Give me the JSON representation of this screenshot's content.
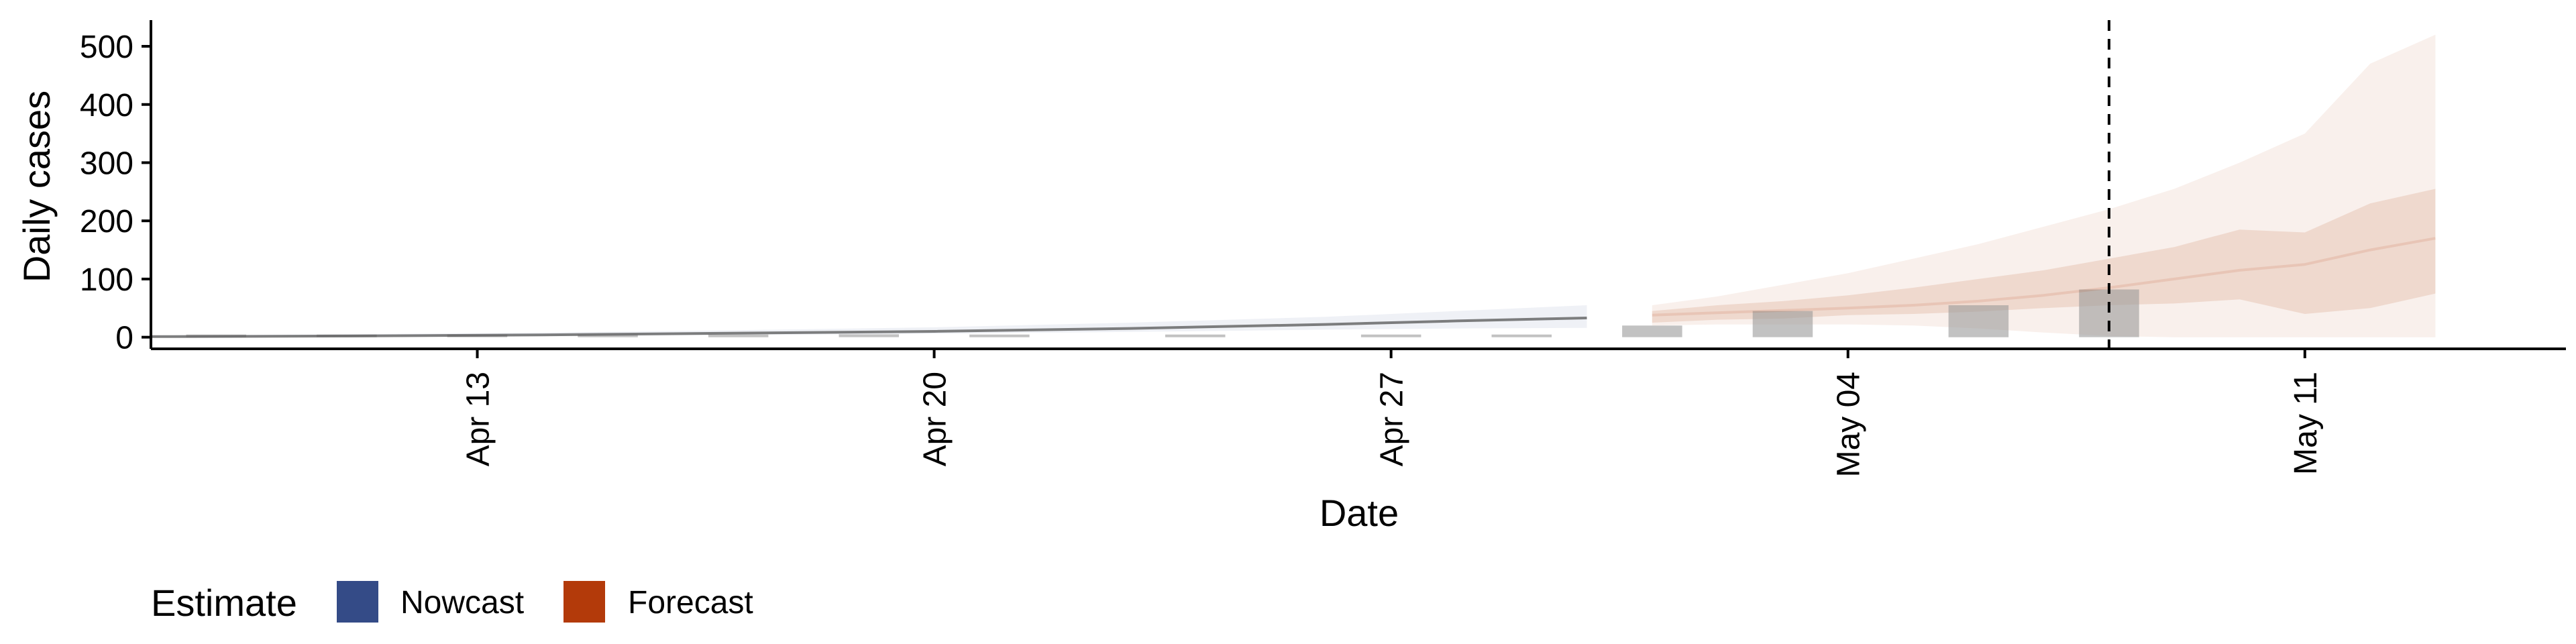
{
  "chart_data": {
    "type": "area",
    "xlabel": "Date",
    "ylabel": "Daily cases",
    "x_range": [
      "2020-04-08",
      "2020-05-15"
    ],
    "ylim": [
      -20,
      545
    ],
    "x_ticks": [
      {
        "date": "2020-04-13",
        "label": "Apr 13"
      },
      {
        "date": "2020-04-20",
        "label": "Apr 20"
      },
      {
        "date": "2020-04-27",
        "label": "Apr 27"
      },
      {
        "date": "2020-05-04",
        "label": "May 04"
      },
      {
        "date": "2020-05-11",
        "label": "May 11"
      }
    ],
    "y_ticks": [
      0,
      100,
      200,
      300,
      400,
      500
    ],
    "grid": false,
    "legend": {
      "title": "Estimate",
      "position": "bottom-left",
      "entries": [
        {
          "label": "Nowcast",
          "color": "#344b87"
        },
        {
          "label": "Forecast",
          "color": "#b33a0a"
        }
      ]
    },
    "vline": {
      "date": "2020-05-08",
      "style": "dashed"
    },
    "observed_cases": {
      "dates": [
        "2020-04-09",
        "2020-04-11",
        "2020-04-13",
        "2020-04-15",
        "2020-04-17",
        "2020-04-19",
        "2020-04-21",
        "2020-04-24",
        "2020-04-27",
        "2020-04-29",
        "2020-05-01",
        "2020-05-03",
        "2020-05-06",
        "2020-05-08"
      ],
      "values": [
        0,
        2,
        3,
        2,
        3,
        5,
        2,
        3,
        4,
        3,
        20,
        45,
        55,
        82
      ]
    },
    "series": [
      {
        "name": "Nowcast",
        "color": "#344b87",
        "dates": [
          "2020-04-08",
          "2020-04-11",
          "2020-04-14",
          "2020-04-17",
          "2020-04-20",
          "2020-04-23",
          "2020-04-26",
          "2020-04-28",
          "2020-04-30"
        ],
        "median": [
          1,
          2,
          4,
          7,
          10,
          15,
          22,
          28,
          33
        ],
        "lower90": [
          0,
          1,
          2,
          4,
          6,
          9,
          13,
          15,
          16
        ],
        "upper90": [
          3,
          5,
          8,
          12,
          17,
          25,
          35,
          45,
          55
        ]
      },
      {
        "name": "Forecast",
        "color": "#b33a0a",
        "dates": [
          "2020-05-01",
          "2020-05-02",
          "2020-05-03",
          "2020-05-04",
          "2020-05-05",
          "2020-05-06",
          "2020-05-07",
          "2020-05-08",
          "2020-05-09",
          "2020-05-10",
          "2020-05-11",
          "2020-05-12",
          "2020-05-13"
        ],
        "median": [
          38,
          42,
          46,
          50,
          55,
          62,
          72,
          85,
          100,
          115,
          125,
          150,
          170
        ],
        "lower50": [
          25,
          30,
          32,
          38,
          40,
          44,
          50,
          55,
          58,
          65,
          40,
          50,
          75
        ],
        "upper50": [
          45,
          55,
          62,
          72,
          85,
          100,
          115,
          135,
          155,
          185,
          180,
          230,
          255
        ],
        "lower90": [
          20,
          22,
          22,
          22,
          20,
          15,
          8,
          2,
          0,
          0,
          0,
          0,
          0
        ],
        "upper90": [
          55,
          70,
          90,
          110,
          135,
          160,
          190,
          220,
          255,
          300,
          350,
          470,
          520
        ]
      }
    ]
  }
}
